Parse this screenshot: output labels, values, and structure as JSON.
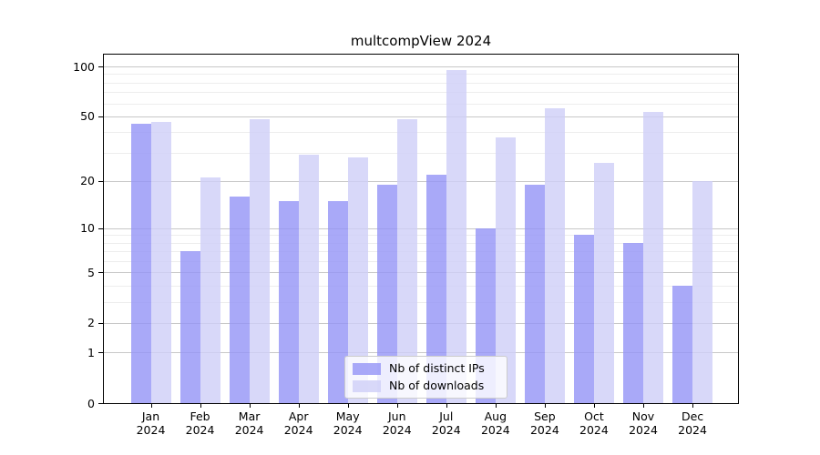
{
  "chart_data": {
    "type": "bar",
    "title": "multcompView 2024",
    "categories": [
      "Jan 2024",
      "Feb 2024",
      "Mar 2024",
      "Apr 2024",
      "May 2024",
      "Jun 2024",
      "Jul 2024",
      "Aug 2024",
      "Sep 2024",
      "Oct 2024",
      "Nov 2024",
      "Dec 2024"
    ],
    "series": [
      {
        "name": "Nb of distinct IPs",
        "color": "rgba(147,147,246,0.8)",
        "color_hex_on_white": "#a8a8f6",
        "values": [
          45,
          7,
          16,
          15,
          15,
          19,
          22,
          10,
          19,
          9,
          8,
          4
        ]
      },
      {
        "name": "Nb of downloads",
        "color": "rgba(206,206,247,0.8)",
        "color_hex_on_white": "#d8d8f8",
        "values": [
          46,
          21,
          48,
          29,
          28,
          48,
          95,
          37,
          56,
          26,
          53,
          20
        ]
      }
    ],
    "yscale": "log1p",
    "ylim": [
      0,
      120
    ],
    "y_major_ticks": [
      0,
      1,
      2,
      5,
      10,
      20,
      50,
      100
    ],
    "y_minor_gridlines": [
      3,
      4,
      6,
      7,
      8,
      9,
      30,
      40,
      60,
      70,
      80,
      90
    ],
    "grid": true,
    "legend_position": "inside-bottom-center",
    "major_grid_color": "#c8c8c8",
    "minor_grid_color": "#ededed"
  }
}
